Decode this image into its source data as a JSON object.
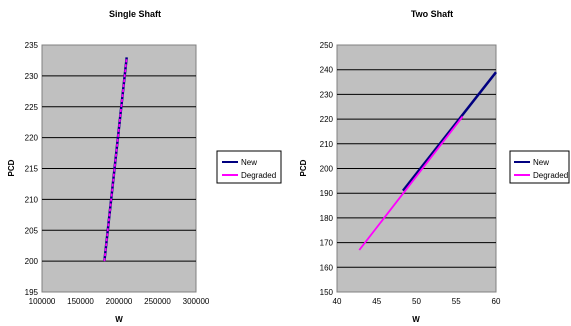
{
  "chart_data": [
    {
      "type": "line",
      "title": "Single Shaft",
      "xlabel": "W",
      "ylabel": "PCD",
      "xlim": [
        100000,
        300000
      ],
      "ylim": [
        195,
        235
      ],
      "xticks": [
        "100000",
        "150000",
        "200000",
        "250000",
        "300000"
      ],
      "yticks": [
        "195",
        "200",
        "205",
        "210",
        "215",
        "220",
        "225",
        "230",
        "235"
      ],
      "grid": true,
      "legend": "right",
      "series": [
        {
          "name": "New",
          "color": "#000080",
          "x": [
            181000,
            210000
          ],
          "y": [
            200,
            233
          ]
        },
        {
          "name": "Degraded",
          "color": "#ff00ff",
          "x": [
            181000,
            210000
          ],
          "y": [
            200,
            233
          ]
        }
      ]
    },
    {
      "type": "line",
      "title": "Two Shaft",
      "xlabel": "W",
      "ylabel": "PCD",
      "xlim": [
        40,
        60
      ],
      "ylim": [
        150,
        250
      ],
      "xticks": [
        "40",
        "45",
        "50",
        "55",
        "60"
      ],
      "yticks": [
        "150",
        "160",
        "170",
        "180",
        "190",
        "200",
        "210",
        "220",
        "230",
        "240",
        "250"
      ],
      "grid": true,
      "legend": "right",
      "series": [
        {
          "name": "New",
          "color": "#000080",
          "x": [
            48.3,
            60
          ],
          "y": [
            191,
            239
          ]
        },
        {
          "name": "Degraded",
          "color": "#ff00ff",
          "x": [
            42.8,
            55.8
          ],
          "y": [
            167,
            221
          ]
        }
      ]
    }
  ]
}
